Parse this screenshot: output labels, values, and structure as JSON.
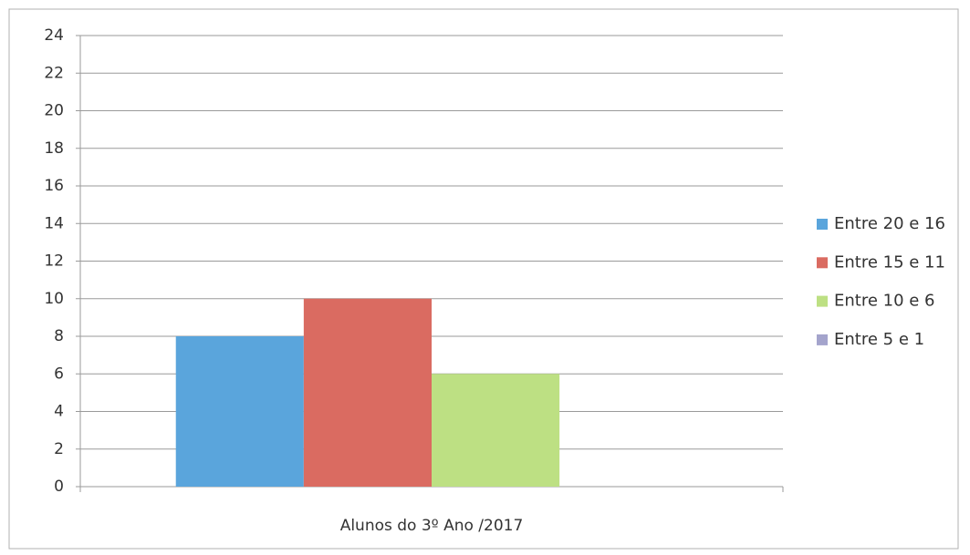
{
  "chart_data": {
    "type": "bar",
    "categories": [
      "Alunos do 3º Ano /2017"
    ],
    "series": [
      {
        "name": "Entre 20 e 16",
        "color": "#5aa5dc",
        "values": [
          8
        ]
      },
      {
        "name": "Entre 15 e 11",
        "color": "#da6b61",
        "values": [
          10
        ]
      },
      {
        "name": "Entre 10 e 6",
        "color": "#bde083",
        "values": [
          6
        ]
      },
      {
        "name": "Entre 5 e 1",
        "color": "#a4a4cc",
        "values": [
          0
        ]
      }
    ],
    "ylim": [
      0,
      24
    ],
    "yticks": [
      0,
      2,
      4,
      6,
      8,
      10,
      12,
      14,
      16,
      18,
      20,
      22,
      24
    ],
    "grid": true,
    "legend": "right"
  }
}
